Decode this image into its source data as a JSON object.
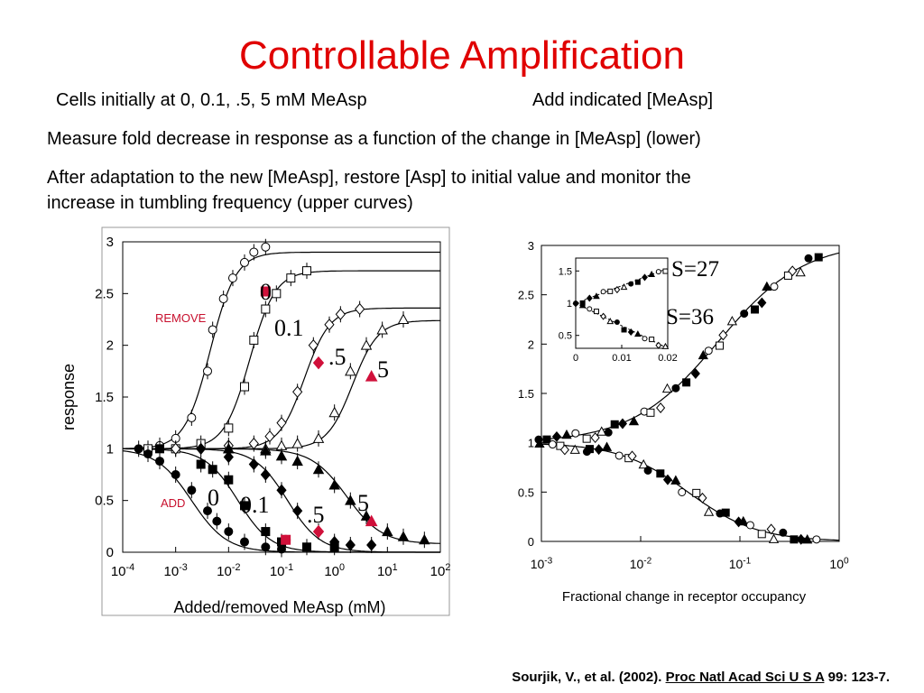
{
  "slide": {
    "title": "Controllable Amplification",
    "line1a": "Cells initially at 0, 0.1, .5, 5 mM MeAsp",
    "line1b": "Add indicated [MeAsp]",
    "line2": "Measure fold decrease in response  as a function of the change in [MeAsp] (lower)",
    "line3a": "After adaptation to the new [MeAsp], restore [Asp] to initial value and monitor the",
    "line3b": "increase in tumbling frequency (upper curves)",
    "citation_prefix": "Sourjik, V., et al. (2002). ",
    "citation_journal": "Proc Natl Acad Sci U S A",
    "citation_suffix": " 99: 123-7."
  },
  "colors": {
    "title": "#e00000",
    "marker_highlight": "#d0103a",
    "ink": "#000000",
    "frame": "#888888"
  },
  "chart_data": [
    {
      "type": "line",
      "xlabel": "Added/removed MeAsp (mM)",
      "ylabel": "response",
      "xscale": "log",
      "xlim": [
        0.0001,
        100
      ],
      "ylim": [
        0,
        3
      ],
      "xticks": [
        "10-4",
        "10-3",
        "10-2",
        "10-1",
        "100",
        "101",
        "102"
      ],
      "yticks": [
        "0",
        "0.5",
        "1",
        "1.5",
        "2",
        "2.5",
        "3"
      ],
      "labels": {
        "remove": "REMOVE",
        "add": "ADD"
      },
      "series_labels_upper": [
        "0",
        "0.1",
        ".5",
        "5"
      ],
      "series_labels_lower": [
        "0",
        "0.1",
        ".5",
        "5"
      ],
      "remove": [
        {
          "marker": "circle-open",
          "points": [
            [
              0.0003,
              1.0
            ],
            [
              0.0005,
              1.03
            ],
            [
              0.001,
              1.1
            ],
            [
              0.002,
              1.3
            ],
            [
              0.004,
              1.75
            ],
            [
              0.005,
              2.15
            ],
            [
              0.008,
              2.45
            ],
            [
              0.012,
              2.65
            ],
            [
              0.02,
              2.8
            ],
            [
              0.03,
              2.9
            ],
            [
              0.05,
              2.95
            ]
          ],
          "highlight": [
            0.05,
            2.52
          ]
        },
        {
          "marker": "square-open",
          "points": [
            [
              0.0003,
              1.0
            ],
            [
              0.001,
              1.0
            ],
            [
              0.003,
              1.05
            ],
            [
              0.01,
              1.2
            ],
            [
              0.02,
              1.6
            ],
            [
              0.03,
              2.05
            ],
            [
              0.05,
              2.35
            ],
            [
              0.08,
              2.5
            ],
            [
              0.15,
              2.65
            ],
            [
              0.3,
              2.72
            ]
          ],
          "highlight": [
            0.05,
            2.52
          ]
        },
        {
          "marker": "diamond-open",
          "points": [
            [
              0.001,
              1.0
            ],
            [
              0.01,
              1.03
            ],
            [
              0.03,
              1.05
            ],
            [
              0.06,
              1.12
            ],
            [
              0.1,
              1.25
            ],
            [
              0.2,
              1.55
            ],
            [
              0.4,
              2.0
            ],
            [
              0.8,
              2.2
            ],
            [
              1.3,
              2.3
            ],
            [
              3,
              2.35
            ]
          ],
          "highlight": [
            0.5,
            1.83
          ]
        },
        {
          "marker": "triangle-open",
          "points": [
            [
              0.01,
              1.0
            ],
            [
              0.05,
              1.0
            ],
            [
              0.1,
              1.03
            ],
            [
              0.2,
              1.05
            ],
            [
              0.5,
              1.1
            ],
            [
              1,
              1.35
            ],
            [
              2,
              1.75
            ],
            [
              4,
              2.0
            ],
            [
              8,
              2.15
            ],
            [
              20,
              2.25
            ]
          ],
          "highlight": [
            5,
            1.7
          ]
        }
      ],
      "add": [
        {
          "marker": "circle-filled",
          "points": [
            [
              0.0002,
              1.0
            ],
            [
              0.0003,
              0.95
            ],
            [
              0.0005,
              0.88
            ],
            [
              0.001,
              0.75
            ],
            [
              0.002,
              0.6
            ],
            [
              0.004,
              0.4
            ],
            [
              0.006,
              0.3
            ],
            [
              0.01,
              0.2
            ],
            [
              0.02,
              0.1
            ],
            [
              0.05,
              0.05
            ],
            [
              0.1,
              0.03
            ]
          ],
          "highlight": [
            0.12,
            0.12
          ]
        },
        {
          "marker": "square-filled",
          "points": [
            [
              0.0005,
              1.0
            ],
            [
              0.003,
              0.85
            ],
            [
              0.005,
              0.8
            ],
            [
              0.01,
              0.7
            ],
            [
              0.02,
              0.45
            ],
            [
              0.05,
              0.2
            ],
            [
              0.1,
              0.1
            ],
            [
              0.3,
              0.05
            ],
            [
              1,
              0.05
            ]
          ],
          "highlight": [
            0.12,
            0.12
          ]
        },
        {
          "marker": "diamond-filled",
          "points": [
            [
              0.003,
              1.0
            ],
            [
              0.01,
              0.92
            ],
            [
              0.03,
              0.85
            ],
            [
              0.05,
              0.75
            ],
            [
              0.1,
              0.6
            ],
            [
              0.2,
              0.4
            ],
            [
              0.5,
              0.2
            ],
            [
              1,
              0.1
            ],
            [
              2,
              0.07
            ],
            [
              5,
              0.07
            ]
          ],
          "highlight": [
            0.5,
            0.2
          ]
        },
        {
          "marker": "triangle-filled",
          "points": [
            [
              0.01,
              1.0
            ],
            [
              0.05,
              0.98
            ],
            [
              0.1,
              0.93
            ],
            [
              0.2,
              0.88
            ],
            [
              0.5,
              0.8
            ],
            [
              1,
              0.65
            ],
            [
              2,
              0.5
            ],
            [
              4,
              0.35
            ],
            [
              10,
              0.2
            ],
            [
              20,
              0.15
            ],
            [
              50,
              0.12
            ]
          ],
          "highlight": [
            5,
            0.3
          ]
        }
      ]
    },
    {
      "type": "scatter",
      "xlabel": "Fractional change in receptor occupancy",
      "xscale": "log",
      "xlim": [
        0.001,
        1
      ],
      "ylim": [
        0,
        3
      ],
      "xticks": [
        "10-3",
        "10-2",
        "10-1",
        "100"
      ],
      "yticks": [
        "0",
        "0.5",
        "1",
        "1.5",
        "2",
        "2.5",
        "3"
      ],
      "annotations": [
        "S=27",
        "S=36"
      ],
      "inset": {
        "xlim": [
          0,
          0.02
        ],
        "ylim": [
          0.3,
          1.7
        ],
        "xticks": [
          "0",
          "0.01",
          "0.02"
        ],
        "yticks": [
          "0.5",
          "1",
          "1.5"
        ]
      }
    }
  ]
}
